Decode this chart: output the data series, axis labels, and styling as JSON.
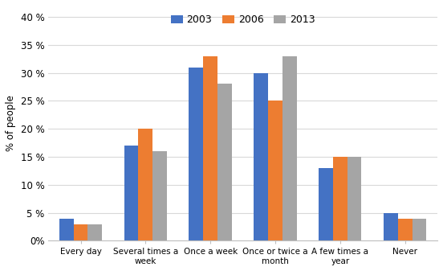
{
  "categories": [
    "Every day",
    "Several times a\nweek",
    "Once a week",
    "Once or twice a\nmonth",
    "A few times a\nyear",
    "Never"
  ],
  "series": {
    "2003": [
      4,
      17,
      31,
      30,
      13,
      5
    ],
    "2006": [
      3,
      20,
      33,
      25,
      15,
      4
    ],
    "2013": [
      3,
      16,
      28,
      33,
      15,
      4
    ]
  },
  "colors": {
    "2003": "#4472C4",
    "2006": "#ED7D31",
    "2013": "#A5A5A5"
  },
  "ylabel": "% of people",
  "ylim": [
    0,
    42
  ],
  "yticks": [
    0,
    5,
    10,
    15,
    20,
    25,
    30,
    35,
    40
  ],
  "ytick_labels": [
    "0%",
    "5%",
    "10%",
    "15%",
    "20%",
    "25%",
    "30%",
    "35%",
    "40%"
  ],
  "legend_labels": [
    "2003",
    "2006",
    "2013"
  ],
  "bar_width": 0.22
}
